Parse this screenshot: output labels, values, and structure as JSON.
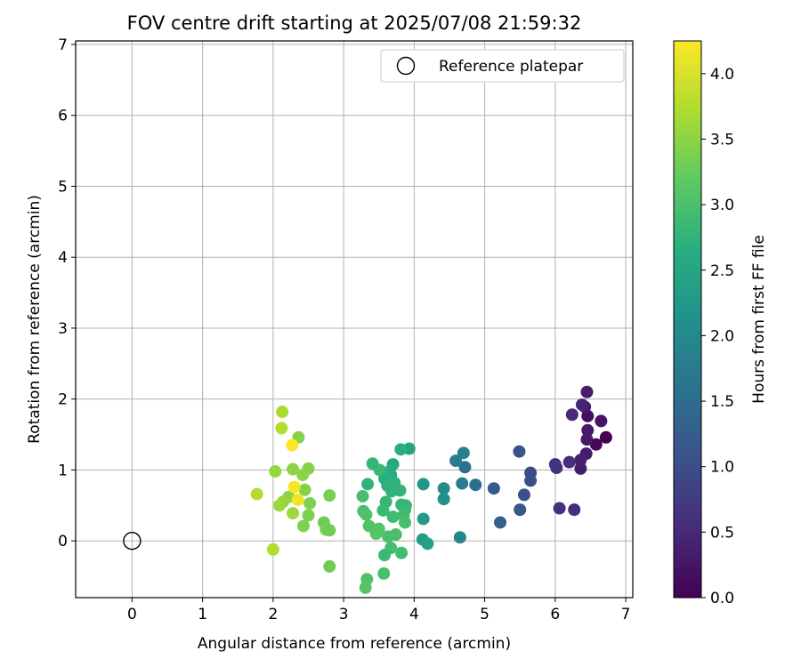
{
  "chart_data": {
    "type": "scatter",
    "title": "FOV centre drift starting at 2025/07/08 21:59:32",
    "xlabel": "Angular distance from reference (arcmin)",
    "ylabel": "Rotation from reference (arcmin)",
    "xlim": [
      -0.8,
      7.1
    ],
    "ylim": [
      -0.8,
      7.05
    ],
    "xticks": [
      "0",
      "1",
      "2",
      "3",
      "4",
      "5",
      "6",
      "7"
    ],
    "yticks": [
      "0",
      "1",
      "2",
      "3",
      "4",
      "5",
      "6",
      "7"
    ],
    "grid": true,
    "legend": {
      "placement": "top-right",
      "entries": [
        "Reference platepar"
      ]
    },
    "reference": {
      "name": "Reference platepar",
      "x": 0,
      "y": 0
    },
    "colorbar": {
      "label": "Hours from first FF file",
      "colormap": "viridis",
      "range": [
        0.0,
        4.25
      ],
      "ticks": [
        "0.0",
        "0.5",
        "1.0",
        "1.5",
        "2.0",
        "2.5",
        "3.0",
        "3.5",
        "4.0"
      ]
    },
    "points": [
      {
        "x": 6.72,
        "y": 1.46,
        "h": 0.0
      },
      {
        "x": 6.58,
        "y": 1.36,
        "h": 0.1
      },
      {
        "x": 6.46,
        "y": 1.76,
        "h": 0.15
      },
      {
        "x": 6.65,
        "y": 1.69,
        "h": 0.25
      },
      {
        "x": 6.46,
        "y": 1.56,
        "h": 0.3
      },
      {
        "x": 6.45,
        "y": 1.43,
        "h": 0.3
      },
      {
        "x": 6.44,
        "y": 1.23,
        "h": 0.35
      },
      {
        "x": 6.36,
        "y": 1.02,
        "h": 0.35
      },
      {
        "x": 6.36,
        "y": 1.14,
        "h": 0.4
      },
      {
        "x": 6.42,
        "y": 1.89,
        "h": 0.3
      },
      {
        "x": 6.45,
        "y": 2.1,
        "h": 0.35
      },
      {
        "x": 6.38,
        "y": 1.92,
        "h": 0.45
      },
      {
        "x": 6.24,
        "y": 1.78,
        "h": 0.5
      },
      {
        "x": 6.2,
        "y": 1.11,
        "h": 0.55
      },
      {
        "x": 6.0,
        "y": 1.08,
        "h": 0.6
      },
      {
        "x": 6.02,
        "y": 1.03,
        "h": 0.65
      },
      {
        "x": 6.06,
        "y": 0.46,
        "h": 0.6
      },
      {
        "x": 6.27,
        "y": 0.44,
        "h": 0.55
      },
      {
        "x": 5.65,
        "y": 0.96,
        "h": 0.95
      },
      {
        "x": 5.65,
        "y": 0.85,
        "h": 1.0
      },
      {
        "x": 5.56,
        "y": 0.65,
        "h": 1.05
      },
      {
        "x": 5.49,
        "y": 1.26,
        "h": 1.1
      },
      {
        "x": 5.5,
        "y": 0.44,
        "h": 1.15
      },
      {
        "x": 5.13,
        "y": 0.74,
        "h": 1.2
      },
      {
        "x": 5.22,
        "y": 0.26,
        "h": 1.3
      },
      {
        "x": 4.87,
        "y": 0.79,
        "h": 1.55
      },
      {
        "x": 4.72,
        "y": 1.04,
        "h": 1.6
      },
      {
        "x": 4.68,
        "y": 0.81,
        "h": 1.75
      },
      {
        "x": 4.7,
        "y": 1.24,
        "h": 1.85
      },
      {
        "x": 4.59,
        "y": 1.13,
        "h": 1.8
      },
      {
        "x": 4.65,
        "y": 0.05,
        "h": 1.95
      },
      {
        "x": 4.42,
        "y": 0.74,
        "h": 2.05
      },
      {
        "x": 4.42,
        "y": 0.59,
        "h": 2.1
      },
      {
        "x": 4.13,
        "y": 0.8,
        "h": 2.2
      },
      {
        "x": 4.13,
        "y": 0.31,
        "h": 2.3
      },
      {
        "x": 4.12,
        "y": 0.02,
        "h": 2.35
      },
      {
        "x": 4.19,
        "y": -0.04,
        "h": 2.4
      },
      {
        "x": 3.93,
        "y": 1.3,
        "h": 2.5
      },
      {
        "x": 3.81,
        "y": 1.29,
        "h": 2.65
      },
      {
        "x": 3.7,
        "y": 1.08,
        "h": 2.55
      },
      {
        "x": 3.65,
        "y": 0.98,
        "h": 2.6
      },
      {
        "x": 3.58,
        "y": 0.88,
        "h": 2.6
      },
      {
        "x": 3.67,
        "y": 0.93,
        "h": 2.65
      },
      {
        "x": 3.62,
        "y": 0.78,
        "h": 2.7
      },
      {
        "x": 3.72,
        "y": 0.82,
        "h": 2.7
      },
      {
        "x": 3.68,
        "y": 0.7,
        "h": 2.75
      },
      {
        "x": 3.8,
        "y": 0.71,
        "h": 2.75
      },
      {
        "x": 3.6,
        "y": 0.55,
        "h": 2.8
      },
      {
        "x": 3.82,
        "y": 0.51,
        "h": 2.8
      },
      {
        "x": 3.88,
        "y": 0.5,
        "h": 2.8
      },
      {
        "x": 3.87,
        "y": 0.44,
        "h": 2.85
      },
      {
        "x": 3.56,
        "y": 0.43,
        "h": 2.85
      },
      {
        "x": 3.7,
        "y": 0.34,
        "h": 2.9
      },
      {
        "x": 3.85,
        "y": 0.36,
        "h": 2.9
      },
      {
        "x": 3.87,
        "y": 0.26,
        "h": 2.95
      },
      {
        "x": 3.74,
        "y": 0.09,
        "h": 3.0
      },
      {
        "x": 3.63,
        "y": 0.06,
        "h": 3.0
      },
      {
        "x": 3.67,
        "y": -0.1,
        "h": 2.95
      },
      {
        "x": 3.82,
        "y": -0.17,
        "h": 2.9
      },
      {
        "x": 3.58,
        "y": -0.2,
        "h": 2.85
      },
      {
        "x": 3.51,
        "y": 1.0,
        "h": 2.85
      },
      {
        "x": 3.41,
        "y": 1.09,
        "h": 2.8
      },
      {
        "x": 3.34,
        "y": 0.8,
        "h": 2.75
      },
      {
        "x": 3.27,
        "y": 0.63,
        "h": 2.95
      },
      {
        "x": 3.28,
        "y": 0.42,
        "h": 3.0
      },
      {
        "x": 3.32,
        "y": 0.37,
        "h": 3.05
      },
      {
        "x": 3.36,
        "y": 0.21,
        "h": 3.05
      },
      {
        "x": 3.5,
        "y": 0.17,
        "h": 3.1
      },
      {
        "x": 3.46,
        "y": 0.1,
        "h": 3.1
      },
      {
        "x": 3.57,
        "y": -0.46,
        "h": 3.0
      },
      {
        "x": 3.33,
        "y": -0.54,
        "h": 3.05
      },
      {
        "x": 3.31,
        "y": -0.66,
        "h": 3.1
      },
      {
        "x": 2.8,
        "y": 0.64,
        "h": 3.35
      },
      {
        "x": 2.72,
        "y": 0.26,
        "h": 3.3
      },
      {
        "x": 2.75,
        "y": 0.16,
        "h": 3.35
      },
      {
        "x": 2.8,
        "y": 0.15,
        "h": 3.3
      },
      {
        "x": 2.8,
        "y": -0.36,
        "h": 3.3
      },
      {
        "x": 2.5,
        "y": 1.02,
        "h": 3.45
      },
      {
        "x": 2.42,
        "y": 0.93,
        "h": 3.5
      },
      {
        "x": 2.45,
        "y": 0.72,
        "h": 3.45
      },
      {
        "x": 2.52,
        "y": 0.53,
        "h": 3.4
      },
      {
        "x": 2.5,
        "y": 0.36,
        "h": 3.4
      },
      {
        "x": 2.43,
        "y": 0.21,
        "h": 3.4
      },
      {
        "x": 2.36,
        "y": 1.46,
        "h": 3.45
      },
      {
        "x": 2.28,
        "y": 1.01,
        "h": 3.5
      },
      {
        "x": 2.22,
        "y": 0.62,
        "h": 3.5
      },
      {
        "x": 2.14,
        "y": 0.55,
        "h": 3.55
      },
      {
        "x": 2.09,
        "y": 0.5,
        "h": 3.6
      },
      {
        "x": 2.03,
        "y": 0.98,
        "h": 3.55
      },
      {
        "x": 2.28,
        "y": 0.39,
        "h": 3.6
      },
      {
        "x": 2.13,
        "y": 1.82,
        "h": 3.7
      },
      {
        "x": 2.12,
        "y": 1.59,
        "h": 3.75
      },
      {
        "x": 1.77,
        "y": 0.66,
        "h": 3.75
      },
      {
        "x": 2.0,
        "y": -0.12,
        "h": 3.75
      },
      {
        "x": 2.35,
        "y": 0.58,
        "h": 4.15
      },
      {
        "x": 2.3,
        "y": 0.76,
        "h": 4.2
      },
      {
        "x": 2.27,
        "y": 1.35,
        "h": 4.25
      }
    ]
  }
}
